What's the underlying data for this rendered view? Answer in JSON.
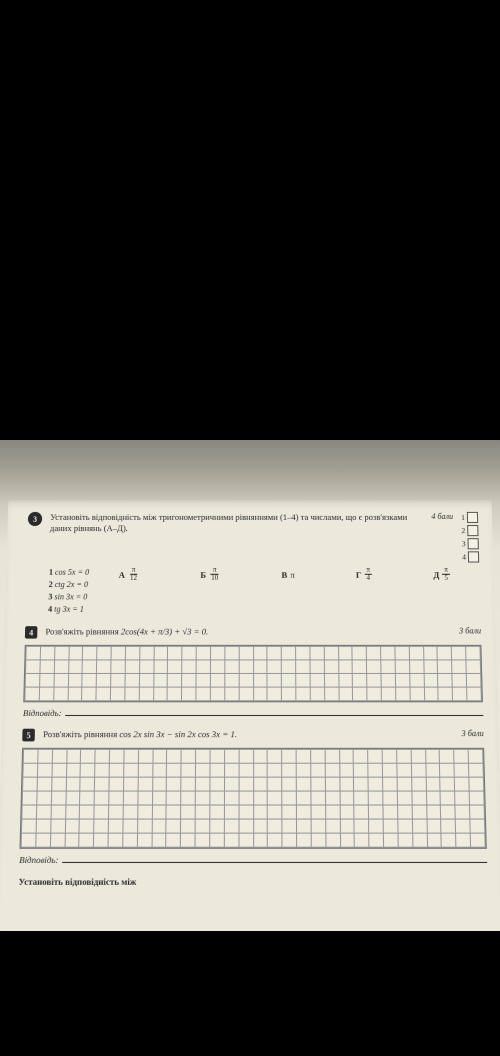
{
  "background_color": "#000000",
  "paper_color": "#ece8dc",
  "text_color": "#2a2a2a",
  "q3": {
    "number": "3",
    "text": "Установіть відповідність між тригонометричними рівняннями (1–4) та числами, що є розв'язками даних рівнянь (А–Д).",
    "points": "4 бали",
    "equations": {
      "1": "cos 5x = 0",
      "2": "ctg 2x = 0",
      "3": "sin 3x = 0",
      "4": "tg 3x = 1"
    },
    "options": {
      "A": {
        "num": "π",
        "den": "12"
      },
      "Б": {
        "num": "π",
        "den": "10"
      },
      "В": {
        "plain": "π"
      },
      "Г": {
        "num": "π",
        "den": "4"
      },
      "Д": {
        "num": "π",
        "den": "5"
      }
    },
    "answer_labels": [
      "1",
      "2",
      "3",
      "4"
    ]
  },
  "q4": {
    "number": "4",
    "prefix": "Розв'яжіть рівняння",
    "equation": "2cos(4x + π/3) + √3 = 0.",
    "points": "3 бали",
    "grid": {
      "rows": 4,
      "cols": 32
    }
  },
  "q5": {
    "number": "5",
    "prefix": "Розв'яжіть рівняння",
    "equation": "cos 2x sin 3x − sin 2x cos 3x = 1.",
    "points": "3 бали",
    "grid": {
      "rows": 7,
      "cols": 32
    }
  },
  "answer_label": "Відповідь:",
  "cutoff_text": "Установіть відповідність між"
}
